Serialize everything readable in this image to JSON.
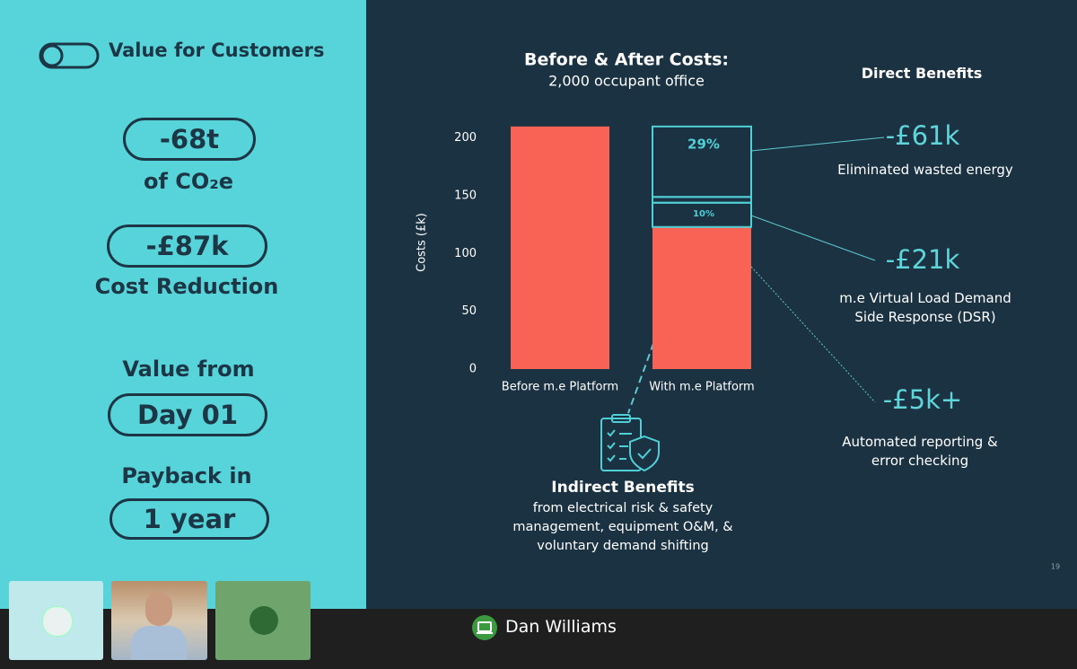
{
  "left_panel": {
    "title": "Value for Customers",
    "co2_value": "-68t",
    "co2_label": "of CO₂e",
    "cost_value": "-£87k",
    "cost_label": "Cost Reduction",
    "value_from_label": "Value from",
    "value_from": "Day 01",
    "payback_label": "Payback in",
    "payback": "1 year"
  },
  "chart_data": {
    "type": "stacked-bar",
    "title": "Before & After Costs:",
    "subtitle": "2,000 occupant office",
    "y_label": "Costs (£k)",
    "categories": [
      "Before m.e Platform",
      "With m.e Platform"
    ],
    "series": [
      {
        "color": "#f96355",
        "values": [
          210,
          123
        ]
      },
      {
        "color": "#4fd0d6",
        "values": [
          null,
          21
        ],
        "value_labels": [
          null,
          "10%"
        ]
      },
      {
        "color": "#4fd0d6",
        "values": [
          null,
          5
        ]
      },
      {
        "color": "#4fd0d6",
        "values": [
          null,
          61
        ],
        "value_labels": [
          null,
          "29%"
        ]
      }
    ],
    "ylim": [
      0,
      220
    ],
    "yticks": [
      0,
      50,
      100,
      150,
      200
    ],
    "grid": false
  },
  "direct_benefits": {
    "title": "Direct Benefits",
    "items": [
      {
        "value": "-£61k",
        "label": "Eliminated wasted energy"
      },
      {
        "value": "-£21k",
        "label": "m.e Virtual Load Demand Side Response (DSR)"
      },
      {
        "value": "-£5k+",
        "label": "Automated reporting & error checking"
      }
    ]
  },
  "indirect_benefits": {
    "title": "Indirect Benefits",
    "text": "from electrical risk & safety management, equipment O&M, & voluntary demand shifting"
  },
  "slide_number": "19",
  "call": {
    "speaker": "Dan Williams"
  }
}
